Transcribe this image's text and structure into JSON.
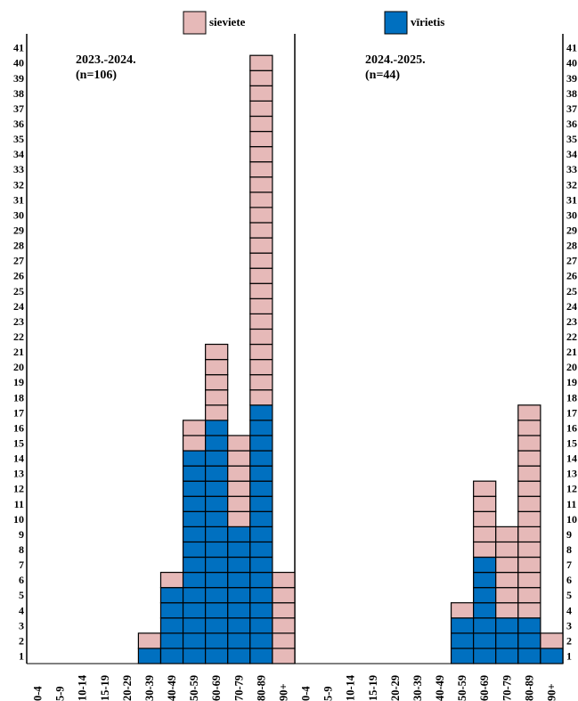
{
  "legend": {
    "female_label": "sieviete",
    "male_label": "vīrietis"
  },
  "colors": {
    "female": "#e6b9b8",
    "male": "#0070c0"
  },
  "chart_data": [
    {
      "type": "bar",
      "stacked": true,
      "unit_blocks": true,
      "title_line1": "2023.-2024.",
      "title_line2": "(n=106)",
      "categories": [
        "0-4",
        "5-9",
        "10-14",
        "15-19",
        "20-29",
        "30-39",
        "40-49",
        "50-59",
        "60-69",
        "70-79",
        "80-89",
        "90+"
      ],
      "series": [
        {
          "name": "vīrietis",
          "values": [
            0,
            0,
            0,
            0,
            0,
            1,
            5,
            14,
            16,
            9,
            17,
            0
          ]
        },
        {
          "name": "sieviete",
          "values": [
            0,
            0,
            0,
            0,
            0,
            1,
            1,
            2,
            5,
            6,
            23,
            6
          ]
        }
      ],
      "ylim": [
        0,
        41
      ],
      "yticks": [
        1,
        2,
        3,
        4,
        5,
        6,
        7,
        8,
        9,
        10,
        11,
        12,
        13,
        14,
        15,
        16,
        17,
        18,
        19,
        20,
        21,
        22,
        23,
        24,
        25,
        26,
        27,
        28,
        29,
        30,
        31,
        32,
        33,
        34,
        35,
        36,
        37,
        38,
        39,
        40,
        41
      ],
      "legend_position": "top"
    },
    {
      "type": "bar",
      "stacked": true,
      "unit_blocks": true,
      "title_line1": "2024.-2025.",
      "title_line2": "(n=44)",
      "categories": [
        "0-4",
        "5-9",
        "10-14",
        "15-19",
        "20-29",
        "30-39",
        "40-49",
        "50-59",
        "60-69",
        "70-79",
        "80-89",
        "90+"
      ],
      "series": [
        {
          "name": "vīrietis",
          "values": [
            0,
            0,
            0,
            0,
            0,
            0,
            0,
            3,
            7,
            3,
            3,
            1
          ]
        },
        {
          "name": "sieviete",
          "values": [
            0,
            0,
            0,
            0,
            0,
            0,
            0,
            1,
            5,
            6,
            14,
            1
          ]
        }
      ],
      "ylim": [
        0,
        41
      ],
      "yticks": [
        1,
        2,
        3,
        4,
        5,
        6,
        7,
        8,
        9,
        10,
        11,
        12,
        13,
        14,
        15,
        16,
        17,
        18,
        19,
        20,
        21,
        22,
        23,
        24,
        25,
        26,
        27,
        28,
        29,
        30,
        31,
        32,
        33,
        34,
        35,
        36,
        37,
        38,
        39,
        40,
        41
      ],
      "legend_position": "top"
    }
  ]
}
